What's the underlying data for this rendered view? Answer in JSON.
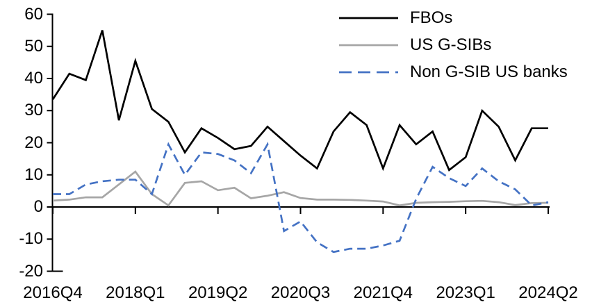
{
  "chart_data": {
    "type": "line",
    "title": "",
    "xlabel": "",
    "ylabel": "",
    "ylim": [
      -20,
      60
    ],
    "y_ticks": [
      60,
      50,
      40,
      30,
      20,
      10,
      0,
      -10,
      -20
    ],
    "x_tick_labels": [
      "2016Q4",
      "2018Q1",
      "2019Q2",
      "2020Q3",
      "2021Q4",
      "2023Q1",
      "2024Q2"
    ],
    "grid": false,
    "legend_position": "top-right",
    "axis_color": "#000000",
    "categories": [
      "2016Q4",
      "2017Q1",
      "2017Q2",
      "2017Q3",
      "2017Q4",
      "2018Q1",
      "2018Q2",
      "2018Q3",
      "2018Q4",
      "2019Q1",
      "2019Q2",
      "2019Q3",
      "2019Q4",
      "2020Q1",
      "2020Q2",
      "2020Q3",
      "2020Q4",
      "2021Q1",
      "2021Q2",
      "2021Q3",
      "2021Q4",
      "2022Q1",
      "2022Q2",
      "2022Q3",
      "2022Q4",
      "2023Q1",
      "2023Q2",
      "2023Q3",
      "2023Q4",
      "2024Q1",
      "2024Q2"
    ],
    "series": [
      {
        "name": "FBOs",
        "color": "#000000",
        "style": "solid",
        "values": [
          33.5,
          41.5,
          39.5,
          55,
          27,
          45.5,
          30.5,
          26.5,
          17,
          24.5,
          21.5,
          18,
          19,
          25,
          20.5,
          16,
          12,
          23.5,
          29.5,
          25.5,
          12,
          25.5,
          19.5,
          23.5,
          11.5,
          15.5,
          30,
          25,
          14.5,
          24.5,
          24.5
        ]
      },
      {
        "name": "US G-SIBs",
        "color": "#A6A6A6",
        "style": "solid",
        "values": [
          2,
          2.3,
          3,
          3,
          7,
          11,
          4,
          0.5,
          7.5,
          8,
          5.2,
          6,
          2.7,
          3.5,
          4.6,
          2.8,
          2.3,
          2.3,
          2.2,
          2,
          1.7,
          0.5,
          1.3,
          1.5,
          1.6,
          1.8,
          1.9,
          1.5,
          0.6,
          1.2,
          1.3
        ]
      },
      {
        "name": "Non G-SIB US banks",
        "color": "#4472C4",
        "style": "dashed",
        "values": [
          4,
          4,
          7,
          8,
          8.5,
          8.5,
          4,
          19.5,
          10,
          17,
          16.5,
          14.5,
          10.5,
          19.5,
          -7.5,
          -4.5,
          -11,
          -14,
          -13,
          -13,
          -12,
          -10.5,
          2.5,
          12.5,
          9,
          6.5,
          12,
          8,
          5.5,
          0.5,
          1.5
        ]
      }
    ]
  }
}
